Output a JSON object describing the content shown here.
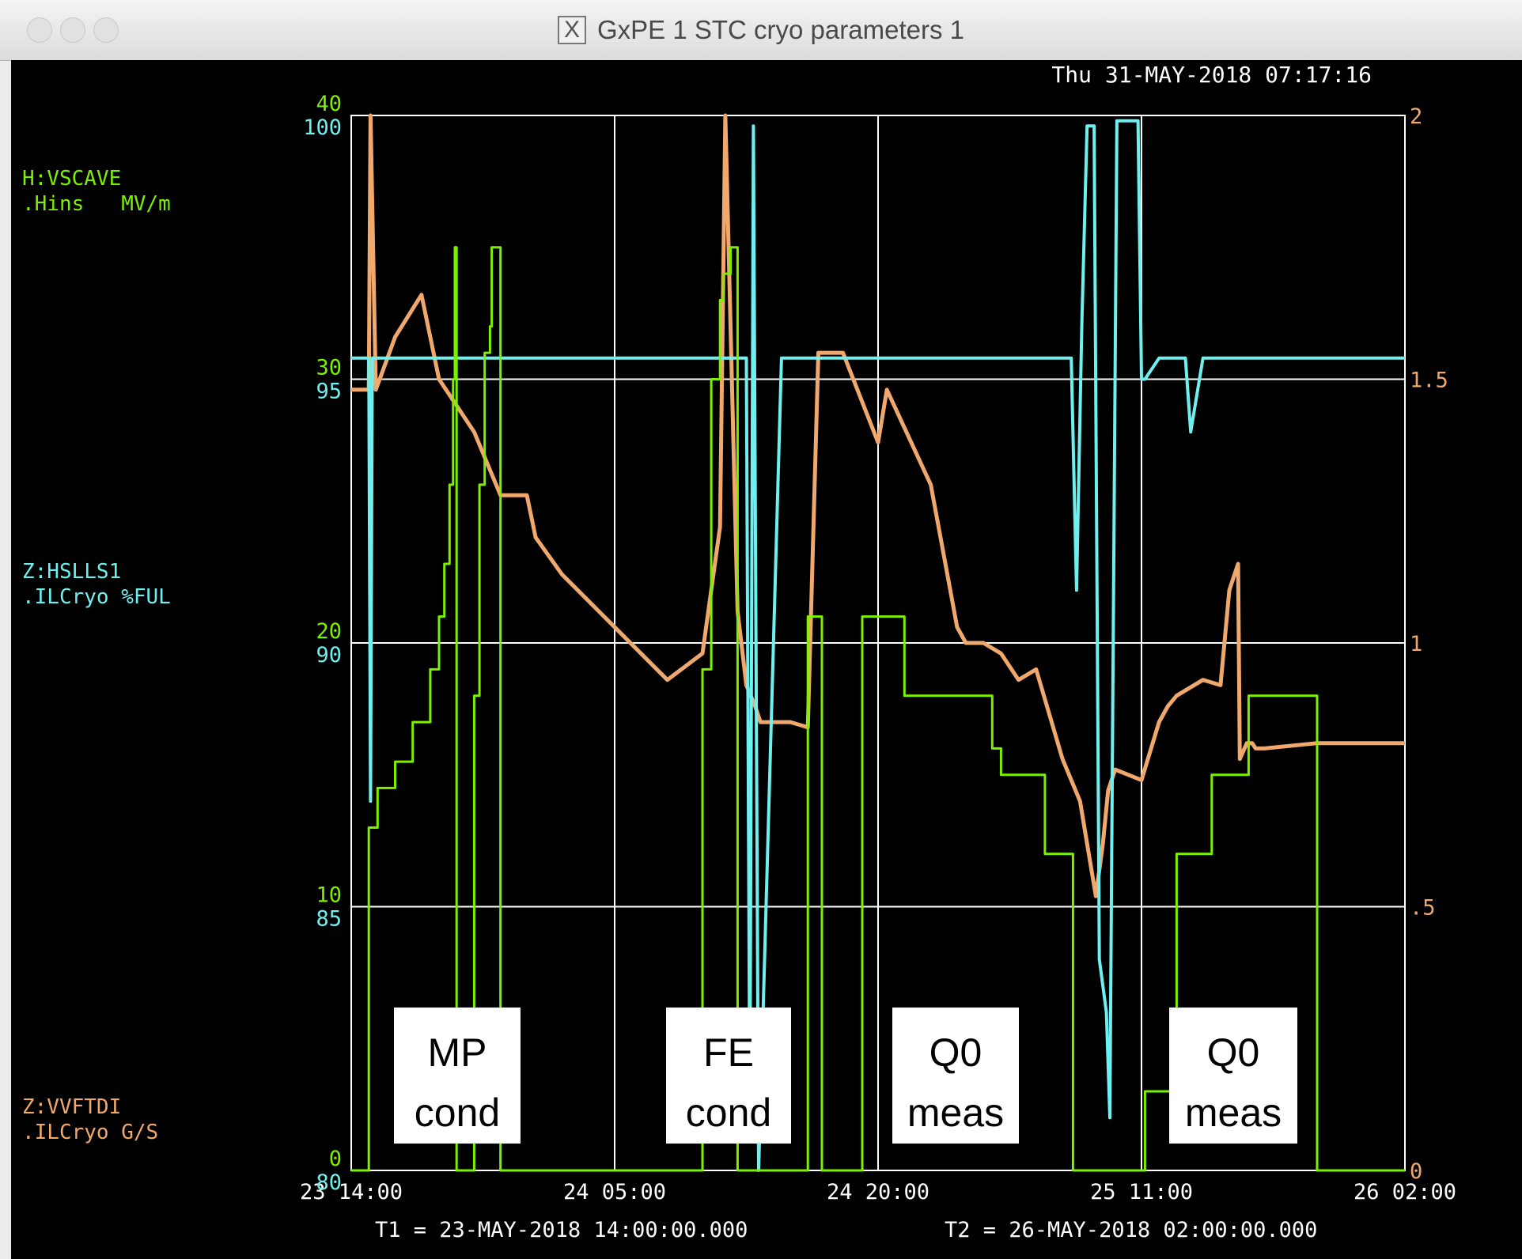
{
  "window": {
    "title": "GxPE 1 STC cryo parameters 1",
    "x_glyph": "X"
  },
  "header": {
    "timestamp": "Thu 31-MAY-2018 07:17:16"
  },
  "channels": [
    {
      "name": "H:VSCAVE",
      "sub": ".Hins   MV/m",
      "color": "#7cf000"
    },
    {
      "name": "Z:HSLLS1",
      "sub": ".ILCryo %FUL",
      "color": "#6ff0f0"
    },
    {
      "name": "Z:VVFTDI",
      "sub": ".ILCryo G/S",
      "color": "#f0a86c"
    }
  ],
  "axes": {
    "left_green_ticks": [
      "40",
      "30",
      "20",
      "10",
      "0"
    ],
    "left_cyan_ticks": [
      "100",
      "95",
      "90",
      "85",
      "80"
    ],
    "right_orange_ticks": [
      "2",
      "1.5",
      "1",
      ".5",
      "0"
    ],
    "x_ticks": [
      "23 14:00",
      "24 05:00",
      "24 20:00",
      "25 11:00",
      "26 02:00"
    ],
    "t1": "T1 = 23-MAY-2018 14:00:00.000",
    "t2": "T2 = 26-MAY-2018 02:00:00.000"
  },
  "annotations": [
    {
      "line1": "MP",
      "line2": "cond"
    },
    {
      "line1": "FE",
      "line2": "cond"
    },
    {
      "line1": "Q0",
      "line2": "meas"
    },
    {
      "line1": "Q0",
      "line2": "meas"
    }
  ],
  "chart_data": {
    "type": "line",
    "title": "",
    "x_unit": "hours since T1 (23-MAY-2018 14:00)",
    "xlim": [
      0,
      60
    ],
    "grid": true,
    "series": [
      {
        "name": "H:VSCAVE",
        "axis": "left_green",
        "ylim": [
          0,
          40
        ],
        "color": "#7cf000",
        "x": [
          0,
          0.8,
          1.0,
          1.5,
          2.5,
          3.5,
          4.5,
          5.0,
          5.3,
          5.6,
          5.8,
          5.9,
          6.0,
          6.5,
          7.0,
          7.3,
          7.6,
          7.9,
          8.0,
          8.5,
          9.0,
          9.5,
          10.5,
          12,
          14,
          15,
          18,
          19.5,
          20.0,
          20.5,
          21.0,
          21.2,
          21.6,
          22.0,
          22.5,
          22.6,
          22.8,
          23.0,
          25.5,
          26.0,
          26.5,
          26.6,
          26.8,
          29.0,
          29.1,
          29.4,
          31.5,
          31.6,
          34.0,
          36.5,
          37.0,
          37.5,
          39.5,
          39.6,
          40.0,
          40.2,
          41.0,
          41.1,
          41.3,
          42.2,
          42.3,
          42.4,
          44.5,
          45.0,
          45.1,
          45.2,
          46.7,
          46.8,
          47.0,
          47.5,
          48.0,
          49.0,
          50.0,
          51.0,
          51.1,
          52.0,
          55.0,
          60.0
        ],
        "y": [
          0,
          0,
          13,
          14.5,
          15.5,
          17,
          19,
          21,
          23,
          26,
          30,
          35,
          0,
          0,
          18,
          26,
          31,
          32,
          35,
          0,
          0,
          0,
          0,
          0,
          0,
          0,
          0,
          0,
          19,
          30,
          33,
          34,
          35,
          0,
          0,
          0,
          0,
          0,
          0,
          21,
          21,
          21,
          0,
          0,
          21,
          21,
          18,
          18,
          18,
          16,
          15,
          15,
          12,
          12,
          12,
          12,
          12,
          0,
          0,
          0,
          0,
          0,
          0,
          0,
          0,
          3,
          3,
          3,
          12,
          12,
          12,
          15,
          15,
          15,
          18,
          18,
          0,
          0
        ]
      },
      {
        "name": "Z:HSLLS1",
        "axis": "left_cyan",
        "ylim": [
          80,
          100
        ],
        "color": "#6ff0f0",
        "x": [
          0,
          1.0,
          1.1,
          1.2,
          2.5,
          5.0,
          7.0,
          9.0,
          12.0,
          17.0,
          20.0,
          21.5,
          22.5,
          22.7,
          22.9,
          23.2,
          24.5,
          26.0,
          30.0,
          33.0,
          36.0,
          39.0,
          41.0,
          41.3,
          41.6,
          41.9,
          42.3,
          42.6,
          43.0,
          43.2,
          43.6,
          44.0,
          44.5,
          44.6,
          44.8,
          45.0,
          45.2,
          46.0,
          47.5,
          47.8,
          48.5,
          52.0,
          60.0
        ],
        "y": [
          95.4,
          95.4,
          87,
          95.4,
          95.4,
          95.4,
          95.4,
          95.4,
          95.4,
          95.4,
          95.4,
          95.4,
          95.4,
          81,
          99.8,
          80,
          95.4,
          95.4,
          95.4,
          95.4,
          95.4,
          95.4,
          95.4,
          91,
          96,
          99.8,
          99.8,
          84,
          83,
          81,
          99.9,
          99.9,
          99.9,
          99.9,
          99.9,
          95,
          95,
          95.4,
          95.4,
          94,
          95.4,
          95.4,
          95.4
        ]
      },
      {
        "name": "Z:VVFTDI",
        "axis": "right_orange",
        "ylim": [
          0,
          2
        ],
        "color": "#f0a86c",
        "x": [
          0,
          1.0,
          1.1,
          1.4,
          2.5,
          4.0,
          5.0,
          7.0,
          8.5,
          10.0,
          10.5,
          12.0,
          15.0,
          18.0,
          20.0,
          21.0,
          21.3,
          22.0,
          22.5,
          23.0,
          23.3,
          25.0,
          26.0,
          26.6,
          28.0,
          30.0,
          30.5,
          33.0,
          34.5,
          35.0,
          36.0,
          37.0,
          38.0,
          39.0,
          40.5,
          41.5,
          42.0,
          42.4,
          42.8,
          43.1,
          43.5,
          45.0,
          46.0,
          46.5,
          47.0,
          48.5,
          49.5,
          50.0,
          50.5,
          50.6,
          51.0,
          51.3,
          51.5,
          52.0,
          55.0,
          60.0
        ],
        "y": [
          1.48,
          1.48,
          2.0,
          1.48,
          1.58,
          1.66,
          1.5,
          1.4,
          1.28,
          1.28,
          1.2,
          1.13,
          1.03,
          0.93,
          0.98,
          1.22,
          2.0,
          1.06,
          0.92,
          0.88,
          0.85,
          0.85,
          0.84,
          1.55,
          1.55,
          1.38,
          1.48,
          1.3,
          1.03,
          1.0,
          1.0,
          0.98,
          0.93,
          0.95,
          0.78,
          0.7,
          0.6,
          0.52,
          0.62,
          0.72,
          0.76,
          0.74,
          0.85,
          0.88,
          0.9,
          0.93,
          0.92,
          1.1,
          1.15,
          0.78,
          0.81,
          0.81,
          0.8,
          0.8,
          0.81,
          0.81
        ]
      }
    ]
  }
}
